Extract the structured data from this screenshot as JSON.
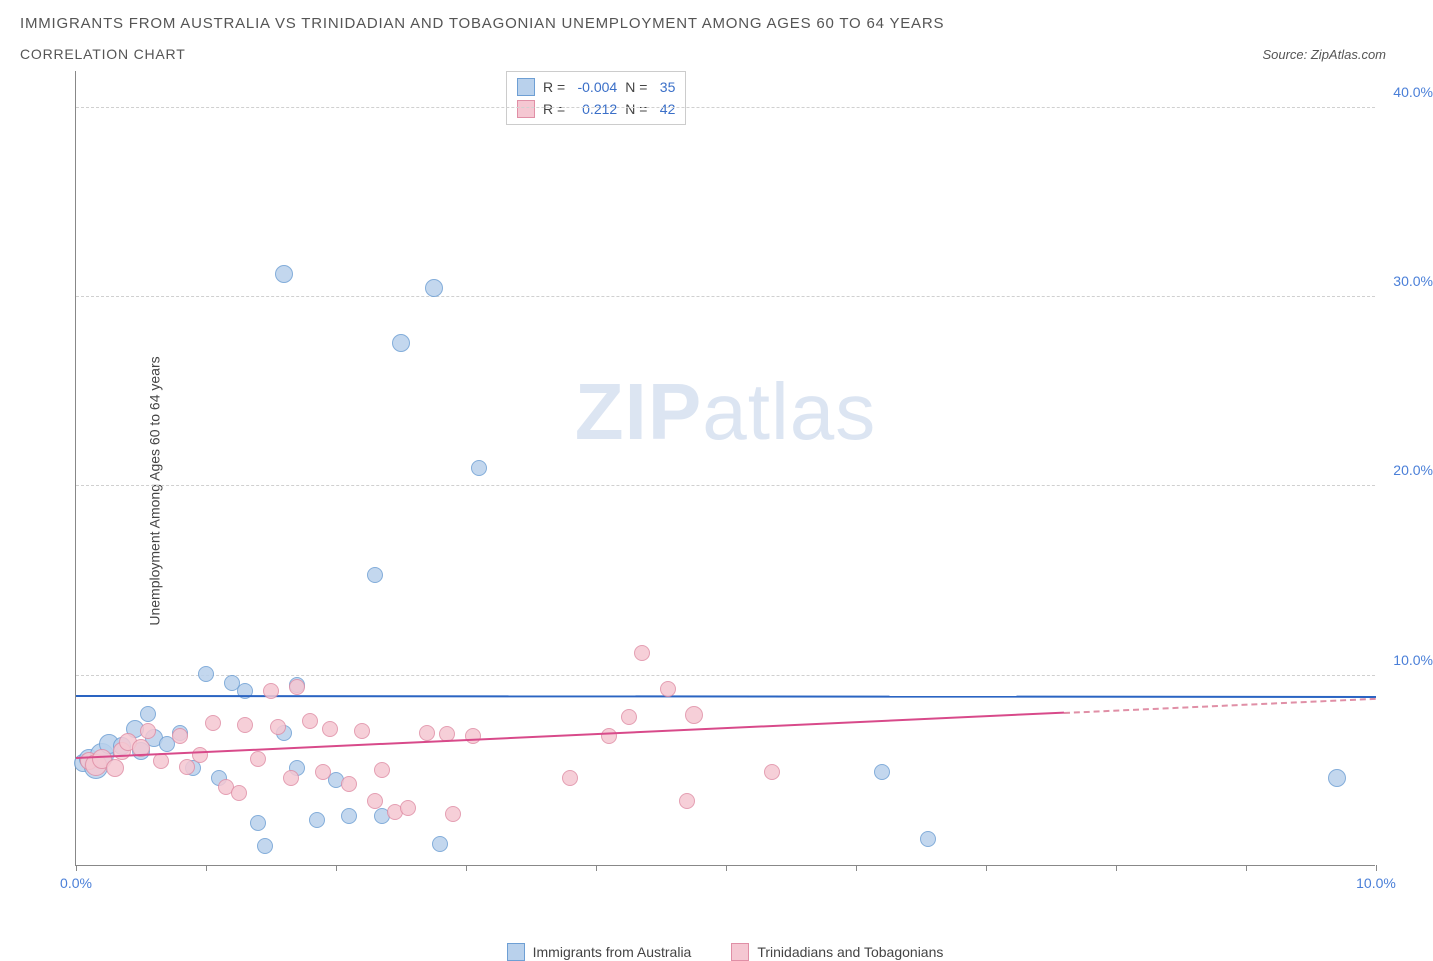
{
  "title_line1": "IMMIGRANTS FROM AUSTRALIA VS TRINIDADIAN AND TOBAGONIAN UNEMPLOYMENT AMONG AGES 60 TO 64 YEARS",
  "title_line2": "CORRELATION CHART",
  "source_label": "Source: ZipAtlas.com",
  "ylabel": "Unemployment Among Ages 60 to 64 years",
  "watermark_bold": "ZIP",
  "watermark_rest": "atlas",
  "chart": {
    "type": "scatter",
    "xlim": [
      0,
      10
    ],
    "ylim": [
      0,
      42
    ],
    "xticks": [
      0,
      1,
      2,
      3,
      4,
      5,
      6,
      7,
      8,
      9,
      10
    ],
    "xtick_labels": {
      "0": "0.0%",
      "10": "10.0%"
    },
    "yticks": [
      10,
      20,
      30,
      40
    ],
    "ytick_labels": {
      "10": "10.0%",
      "20": "20.0%",
      "30": "30.0%",
      "40": "40.0%"
    },
    "background_color": "#ffffff",
    "grid_color": "#d0d0d0",
    "axis_color": "#888888",
    "text_color": "#444444",
    "tick_label_color": "#4a7fd8",
    "series": [
      {
        "name": "Immigrants from Australia",
        "key": "australia",
        "fill": "#b9d1ec",
        "stroke": "#6e9fd4",
        "trend_color": "#2a64c2",
        "R": "-0.004",
        "N": "35",
        "trend": {
          "x1": 0,
          "y1": 8.9,
          "x2": 10,
          "y2": 8.85
        },
        "points": [
          {
            "x": 0.05,
            "y": 5.4,
            "r": 9
          },
          {
            "x": 0.1,
            "y": 5.6,
            "r": 10
          },
          {
            "x": 0.15,
            "y": 5.2,
            "r": 12
          },
          {
            "x": 0.2,
            "y": 5.8,
            "r": 12
          },
          {
            "x": 0.25,
            "y": 6.4,
            "r": 10
          },
          {
            "x": 0.35,
            "y": 6.3,
            "r": 9
          },
          {
            "x": 0.45,
            "y": 7.2,
            "r": 9
          },
          {
            "x": 0.55,
            "y": 8.0,
            "r": 8
          },
          {
            "x": 0.5,
            "y": 6.0,
            "r": 9
          },
          {
            "x": 0.6,
            "y": 6.7,
            "r": 9
          },
          {
            "x": 0.7,
            "y": 6.4,
            "r": 8
          },
          {
            "x": 0.8,
            "y": 7.0,
            "r": 8
          },
          {
            "x": 0.9,
            "y": 5.1,
            "r": 8
          },
          {
            "x": 1.0,
            "y": 10.1,
            "r": 8
          },
          {
            "x": 1.1,
            "y": 4.6,
            "r": 8
          },
          {
            "x": 1.2,
            "y": 9.6,
            "r": 8
          },
          {
            "x": 1.3,
            "y": 9.2,
            "r": 8
          },
          {
            "x": 1.4,
            "y": 2.2,
            "r": 8
          },
          {
            "x": 1.45,
            "y": 1.0,
            "r": 8
          },
          {
            "x": 1.6,
            "y": 31.2,
            "r": 9
          },
          {
            "x": 1.6,
            "y": 7.0,
            "r": 8
          },
          {
            "x": 1.7,
            "y": 5.1,
            "r": 8
          },
          {
            "x": 1.7,
            "y": 9.5,
            "r": 8
          },
          {
            "x": 1.85,
            "y": 2.4,
            "r": 8
          },
          {
            "x": 2.0,
            "y": 4.5,
            "r": 8
          },
          {
            "x": 2.1,
            "y": 2.6,
            "r": 8
          },
          {
            "x": 2.3,
            "y": 15.3,
            "r": 8
          },
          {
            "x": 2.35,
            "y": 2.6,
            "r": 8
          },
          {
            "x": 2.5,
            "y": 27.6,
            "r": 9
          },
          {
            "x": 2.75,
            "y": 30.5,
            "r": 9
          },
          {
            "x": 2.8,
            "y": 1.1,
            "r": 8
          },
          {
            "x": 3.1,
            "y": 21.0,
            "r": 8
          },
          {
            "x": 6.2,
            "y": 4.9,
            "r": 8
          },
          {
            "x": 6.55,
            "y": 1.4,
            "r": 8
          },
          {
            "x": 9.7,
            "y": 4.6,
            "r": 9
          }
        ]
      },
      {
        "name": "Trinidadians and Tobagonians",
        "key": "trinidad",
        "fill": "#f5c7d2",
        "stroke": "#e08fa6",
        "trend_color": "#d84a8a",
        "R": "0.212",
        "N": "42",
        "trend": {
          "x1": 0,
          "y1": 5.6,
          "x2": 7.6,
          "y2": 8.0
        },
        "trend_extend": {
          "x1": 7.6,
          "y1": 8.0,
          "x2": 10,
          "y2": 8.75
        },
        "points": [
          {
            "x": 0.1,
            "y": 5.5,
            "r": 9
          },
          {
            "x": 0.15,
            "y": 5.3,
            "r": 11
          },
          {
            "x": 0.2,
            "y": 5.6,
            "r": 10
          },
          {
            "x": 0.3,
            "y": 5.1,
            "r": 9
          },
          {
            "x": 0.35,
            "y": 6.0,
            "r": 9
          },
          {
            "x": 0.4,
            "y": 6.5,
            "r": 9
          },
          {
            "x": 0.5,
            "y": 6.2,
            "r": 9
          },
          {
            "x": 0.55,
            "y": 7.1,
            "r": 8
          },
          {
            "x": 0.65,
            "y": 5.5,
            "r": 8
          },
          {
            "x": 0.8,
            "y": 6.8,
            "r": 8
          },
          {
            "x": 0.85,
            "y": 5.2,
            "r": 8
          },
          {
            "x": 0.95,
            "y": 5.8,
            "r": 8
          },
          {
            "x": 1.05,
            "y": 7.5,
            "r": 8
          },
          {
            "x": 1.15,
            "y": 4.1,
            "r": 8
          },
          {
            "x": 1.25,
            "y": 3.8,
            "r": 8
          },
          {
            "x": 1.3,
            "y": 7.4,
            "r": 8
          },
          {
            "x": 1.4,
            "y": 5.6,
            "r": 8
          },
          {
            "x": 1.5,
            "y": 9.2,
            "r": 8
          },
          {
            "x": 1.55,
            "y": 7.3,
            "r": 8
          },
          {
            "x": 1.65,
            "y": 4.6,
            "r": 8
          },
          {
            "x": 1.7,
            "y": 9.4,
            "r": 8
          },
          {
            "x": 1.8,
            "y": 7.6,
            "r": 8
          },
          {
            "x": 1.9,
            "y": 4.9,
            "r": 8
          },
          {
            "x": 1.95,
            "y": 7.2,
            "r": 8
          },
          {
            "x": 2.1,
            "y": 4.3,
            "r": 8
          },
          {
            "x": 2.2,
            "y": 7.1,
            "r": 8
          },
          {
            "x": 2.3,
            "y": 3.4,
            "r": 8
          },
          {
            "x": 2.35,
            "y": 5.0,
            "r": 8
          },
          {
            "x": 2.45,
            "y": 2.8,
            "r": 8
          },
          {
            "x": 2.55,
            "y": 3.0,
            "r": 8
          },
          {
            "x": 2.7,
            "y": 7.0,
            "r": 8
          },
          {
            "x": 2.85,
            "y": 6.9,
            "r": 8
          },
          {
            "x": 2.9,
            "y": 2.7,
            "r": 8
          },
          {
            "x": 3.05,
            "y": 6.8,
            "r": 8
          },
          {
            "x": 3.8,
            "y": 4.6,
            "r": 8
          },
          {
            "x": 4.1,
            "y": 6.8,
            "r": 8
          },
          {
            "x": 4.25,
            "y": 7.8,
            "r": 8
          },
          {
            "x": 4.35,
            "y": 11.2,
            "r": 8
          },
          {
            "x": 4.55,
            "y": 9.3,
            "r": 8
          },
          {
            "x": 4.7,
            "y": 3.4,
            "r": 8
          },
          {
            "x": 4.75,
            "y": 7.9,
            "r": 9
          },
          {
            "x": 5.35,
            "y": 4.9,
            "r": 8
          }
        ]
      }
    ]
  },
  "legend_labels": {
    "R": "R =",
    "N": "N ="
  },
  "bottom_legend": [
    {
      "key": "australia",
      "label": "Immigrants from Australia"
    },
    {
      "key": "trinidad",
      "label": "Trinidadians and Tobagonians"
    }
  ]
}
